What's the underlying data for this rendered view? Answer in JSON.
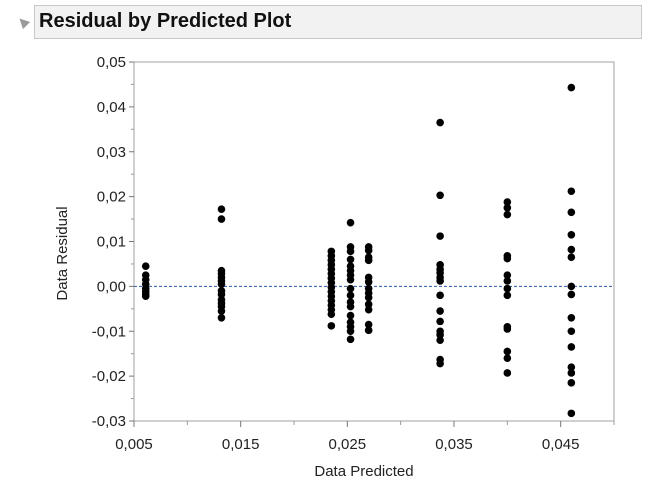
{
  "header": {
    "title": "Residual by Predicted Plot",
    "disclosure_icon": "collapse-triangle-icon"
  },
  "chart_data": {
    "type": "scatter",
    "title": "Residual by Predicted Plot",
    "xlabel": "Data Predicted",
    "ylabel": "Data Residual",
    "xlim": [
      0.005,
      0.05
    ],
    "ylim": [
      -0.03,
      0.05
    ],
    "x_ticks": [
      "0,005",
      "0,015",
      "0,025",
      "0,035",
      "0,045"
    ],
    "x_tick_values": [
      0.005,
      0.015,
      0.025,
      0.035,
      0.045
    ],
    "y_ticks": [
      "0,05",
      "0,04",
      "0,03",
      "0,02",
      "0,01",
      "0,00",
      "-0,01",
      "-0,02",
      "-0,03"
    ],
    "y_tick_values": [
      0.05,
      0.04,
      0.03,
      0.02,
      0.01,
      0.0,
      -0.01,
      -0.02,
      -0.03
    ],
    "reference_line": {
      "y": 0.0,
      "style": "dashed",
      "color": "#2a5aa8"
    },
    "marker_color": "#000000",
    "grid": false,
    "points": [
      {
        "x": 0.0061,
        "y": 0.0045
      },
      {
        "x": 0.0061,
        "y": 0.0025
      },
      {
        "x": 0.0061,
        "y": 0.0015
      },
      {
        "x": 0.0061,
        "y": 0.0005
      },
      {
        "x": 0.0061,
        "y": -0.0005
      },
      {
        "x": 0.0061,
        "y": -0.0012
      },
      {
        "x": 0.0061,
        "y": -0.0018
      },
      {
        "x": 0.0061,
        "y": -0.0022
      },
      {
        "x": 0.0132,
        "y": 0.0172
      },
      {
        "x": 0.0132,
        "y": 0.015
      },
      {
        "x": 0.0132,
        "y": 0.0035
      },
      {
        "x": 0.0132,
        "y": 0.0028
      },
      {
        "x": 0.0132,
        "y": 0.002
      },
      {
        "x": 0.0132,
        "y": 0.0012
      },
      {
        "x": 0.0132,
        "y": 0.0005
      },
      {
        "x": 0.0132,
        "y": -0.001
      },
      {
        "x": 0.0132,
        "y": -0.0018
      },
      {
        "x": 0.0132,
        "y": -0.003
      },
      {
        "x": 0.0132,
        "y": -0.0038
      },
      {
        "x": 0.0132,
        "y": -0.0045
      },
      {
        "x": 0.0132,
        "y": -0.0055
      },
      {
        "x": 0.0132,
        "y": -0.007
      },
      {
        "x": 0.0235,
        "y": 0.0078
      },
      {
        "x": 0.0235,
        "y": 0.0068
      },
      {
        "x": 0.0235,
        "y": 0.0058
      },
      {
        "x": 0.0235,
        "y": 0.0048
      },
      {
        "x": 0.0235,
        "y": 0.0038
      },
      {
        "x": 0.0235,
        "y": 0.0028
      },
      {
        "x": 0.0235,
        "y": 0.0018
      },
      {
        "x": 0.0235,
        "y": 0.0008
      },
      {
        "x": 0.0235,
        "y": -0.0002
      },
      {
        "x": 0.0235,
        "y": -0.0012
      },
      {
        "x": 0.0235,
        "y": -0.0022
      },
      {
        "x": 0.0235,
        "y": -0.0032
      },
      {
        "x": 0.0235,
        "y": -0.0042
      },
      {
        "x": 0.0235,
        "y": -0.0052
      },
      {
        "x": 0.0235,
        "y": -0.0062
      },
      {
        "x": 0.0235,
        "y": -0.0088
      },
      {
        "x": 0.0253,
        "y": 0.0142
      },
      {
        "x": 0.0253,
        "y": 0.0088
      },
      {
        "x": 0.0253,
        "y": 0.0078
      },
      {
        "x": 0.0253,
        "y": 0.006
      },
      {
        "x": 0.0253,
        "y": 0.0045
      },
      {
        "x": 0.0253,
        "y": 0.0035
      },
      {
        "x": 0.0253,
        "y": 0.0025
      },
      {
        "x": 0.0253,
        "y": 0.0015
      },
      {
        "x": 0.0253,
        "y": -0.0005
      },
      {
        "x": 0.0253,
        "y": -0.002
      },
      {
        "x": 0.0253,
        "y": -0.0035
      },
      {
        "x": 0.0253,
        "y": -0.0045
      },
      {
        "x": 0.0253,
        "y": -0.0065
      },
      {
        "x": 0.0253,
        "y": -0.008
      },
      {
        "x": 0.0253,
        "y": -0.009
      },
      {
        "x": 0.0253,
        "y": -0.01
      },
      {
        "x": 0.0253,
        "y": -0.0118
      },
      {
        "x": 0.027,
        "y": 0.0088
      },
      {
        "x": 0.027,
        "y": 0.008
      },
      {
        "x": 0.027,
        "y": 0.0065
      },
      {
        "x": 0.027,
        "y": 0.0058
      },
      {
        "x": 0.027,
        "y": 0.002
      },
      {
        "x": 0.027,
        "y": 0.001
      },
      {
        "x": 0.027,
        "y": -0.0005
      },
      {
        "x": 0.027,
        "y": -0.0015
      },
      {
        "x": 0.027,
        "y": -0.0025
      },
      {
        "x": 0.027,
        "y": -0.004
      },
      {
        "x": 0.027,
        "y": -0.0052
      },
      {
        "x": 0.027,
        "y": -0.0085
      },
      {
        "x": 0.027,
        "y": -0.0098
      },
      {
        "x": 0.0337,
        "y": 0.0365
      },
      {
        "x": 0.0337,
        "y": 0.0203
      },
      {
        "x": 0.0337,
        "y": 0.0112
      },
      {
        "x": 0.0337,
        "y": 0.0048
      },
      {
        "x": 0.0337,
        "y": 0.0038
      },
      {
        "x": 0.0337,
        "y": 0.003
      },
      {
        "x": 0.0337,
        "y": 0.002
      },
      {
        "x": 0.0337,
        "y": 0.0012
      },
      {
        "x": 0.0337,
        "y": -0.002
      },
      {
        "x": 0.0337,
        "y": -0.0055
      },
      {
        "x": 0.0337,
        "y": -0.0078
      },
      {
        "x": 0.0337,
        "y": -0.01
      },
      {
        "x": 0.0337,
        "y": -0.0108
      },
      {
        "x": 0.0337,
        "y": -0.012
      },
      {
        "x": 0.0337,
        "y": -0.0163
      },
      {
        "x": 0.0337,
        "y": -0.0172
      },
      {
        "x": 0.04,
        "y": 0.0188
      },
      {
        "x": 0.04,
        "y": 0.0175
      },
      {
        "x": 0.04,
        "y": 0.016
      },
      {
        "x": 0.04,
        "y": 0.0068
      },
      {
        "x": 0.04,
        "y": 0.0062
      },
      {
        "x": 0.04,
        "y": 0.0025
      },
      {
        "x": 0.04,
        "y": 0.0012
      },
      {
        "x": 0.04,
        "y": -0.0005
      },
      {
        "x": 0.04,
        "y": -0.002
      },
      {
        "x": 0.04,
        "y": -0.009
      },
      {
        "x": 0.04,
        "y": -0.0095
      },
      {
        "x": 0.04,
        "y": -0.0145
      },
      {
        "x": 0.04,
        "y": -0.016
      },
      {
        "x": 0.04,
        "y": -0.0193
      },
      {
        "x": 0.046,
        "y": 0.0443
      },
      {
        "x": 0.046,
        "y": 0.0212
      },
      {
        "x": 0.046,
        "y": 0.0165
      },
      {
        "x": 0.046,
        "y": 0.0115
      },
      {
        "x": 0.046,
        "y": 0.0082
      },
      {
        "x": 0.046,
        "y": 0.0065
      },
      {
        "x": 0.046,
        "y": 0.0
      },
      {
        "x": 0.046,
        "y": -0.0018
      },
      {
        "x": 0.046,
        "y": -0.007
      },
      {
        "x": 0.046,
        "y": -0.01
      },
      {
        "x": 0.046,
        "y": -0.0135
      },
      {
        "x": 0.046,
        "y": -0.018
      },
      {
        "x": 0.046,
        "y": -0.0193
      },
      {
        "x": 0.046,
        "y": -0.0215
      },
      {
        "x": 0.046,
        "y": -0.0283
      }
    ]
  }
}
